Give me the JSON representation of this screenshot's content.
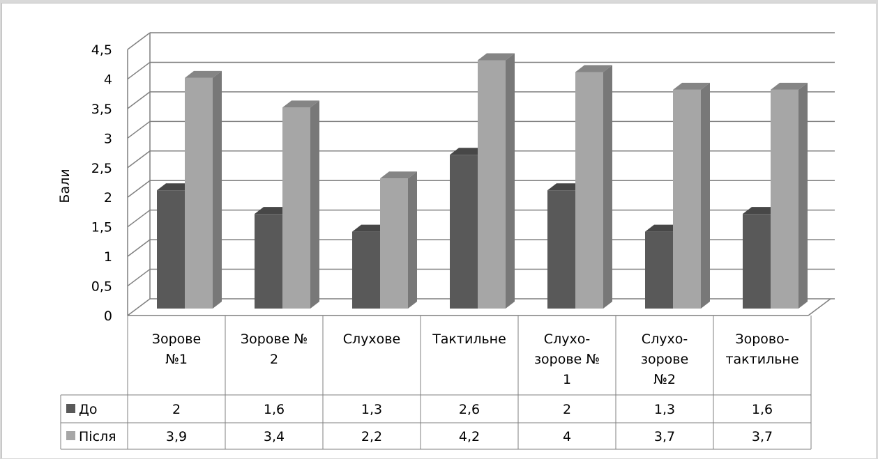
{
  "colors": {
    "series_before": "#595959",
    "series_after": "#a6a6a6",
    "grid": "#7f7f7f",
    "frame": "#bfbfbf"
  },
  "chart_data": {
    "type": "bar",
    "variant": "3d-clustered-column-with-data-table",
    "categories": [
      [
        "Зорове",
        "№1"
      ],
      [
        "Зорове №",
        "2"
      ],
      [
        "Слухове"
      ],
      [
        "Тактильне"
      ],
      [
        "Слухо-",
        "зорове №",
        "1"
      ],
      [
        "Слухо-",
        "зорове",
        "№2"
      ],
      [
        "Зорово-",
        "тактильне"
      ]
    ],
    "series": [
      {
        "name": "До",
        "values": [
          2,
          1.6,
          1.3,
          2.6,
          2,
          1.3,
          1.6
        ],
        "labels": [
          "2",
          "1,6",
          "1,3",
          "2,6",
          "2",
          "1,3",
          "1,6"
        ]
      },
      {
        "name": "Після",
        "values": [
          3.9,
          3.4,
          2.2,
          4.2,
          4,
          3.7,
          3.7
        ],
        "labels": [
          "3,9",
          "3,4",
          "2,2",
          "4,2",
          "4",
          "3,7",
          "3,7"
        ]
      }
    ],
    "ylabel": "Бали",
    "ylim": [
      0,
      4.5
    ],
    "yticks": [
      0,
      0.5,
      1,
      1.5,
      2,
      2.5,
      3,
      3.5,
      4,
      4.5
    ],
    "ytick_labels": [
      "0",
      "0,5",
      "1",
      "1,5",
      "2",
      "2,5",
      "3",
      "3,5",
      "4",
      "4,5"
    ],
    "grid": true,
    "legend": "in-data-table"
  }
}
